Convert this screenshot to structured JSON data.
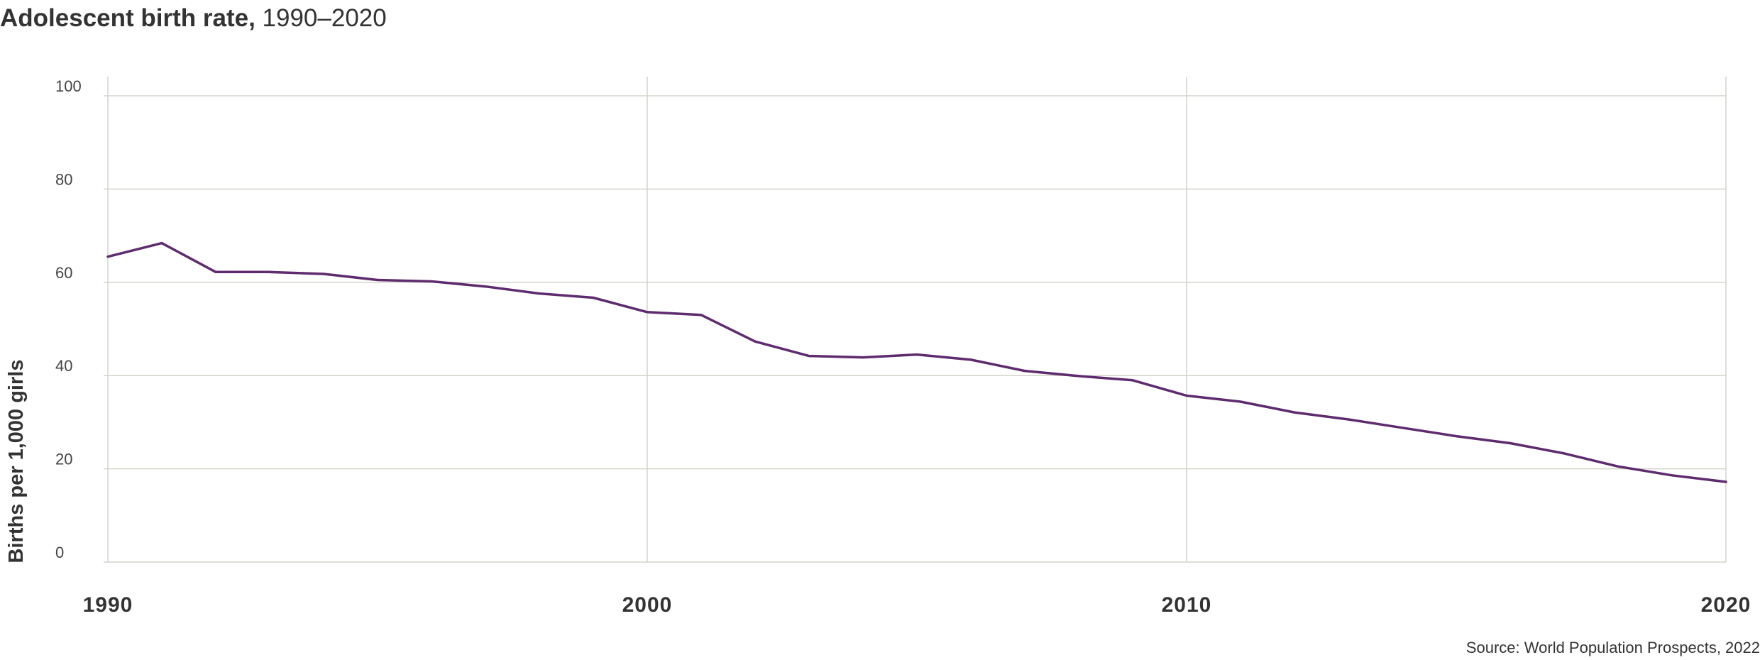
{
  "chart_data": {
    "type": "line",
    "title": "Adolescent birth rate,",
    "subtitle": "1990–2020",
    "ylabel": "Births per 1,000 girls",
    "xlabel": "",
    "xlim": [
      1990,
      2020
    ],
    "ylim": [
      0,
      100
    ],
    "x_ticks": [
      "1990",
      "2000",
      "2010",
      "2020"
    ],
    "y_ticks": [
      "0",
      "20",
      "40",
      "60",
      "80",
      "100"
    ],
    "grid": true,
    "legend": "none",
    "series": [
      {
        "color": "#5e2b6e",
        "x": [
          1990,
          1991,
          1992,
          1993,
          1994,
          1995,
          1996,
          1997,
          1998,
          1999,
          2000,
          2001,
          2002,
          2003,
          2004,
          2005,
          2006,
          2007,
          2008,
          2009,
          2010,
          2011,
          2012,
          2013,
          2014,
          2015,
          2016,
          2017,
          2018,
          2019,
          2020
        ],
        "values": [
          65.5,
          68.4,
          62.2,
          62.2,
          61.8,
          60.5,
          60.2,
          59.1,
          57.6,
          56.7,
          53.6,
          53.0,
          47.3,
          44.2,
          43.9,
          44.5,
          43.4,
          41.0,
          39.9,
          39.0,
          35.7,
          34.4,
          32.1,
          30.6,
          28.8,
          27.0,
          25.5,
          23.3,
          20.5,
          18.6,
          17.2
        ]
      }
    ]
  },
  "source": "Source: World Population Prospects, 2022",
  "colors": {
    "line": "#5e2b6e",
    "grid": "#d4d4cb",
    "text": "#333333"
  }
}
